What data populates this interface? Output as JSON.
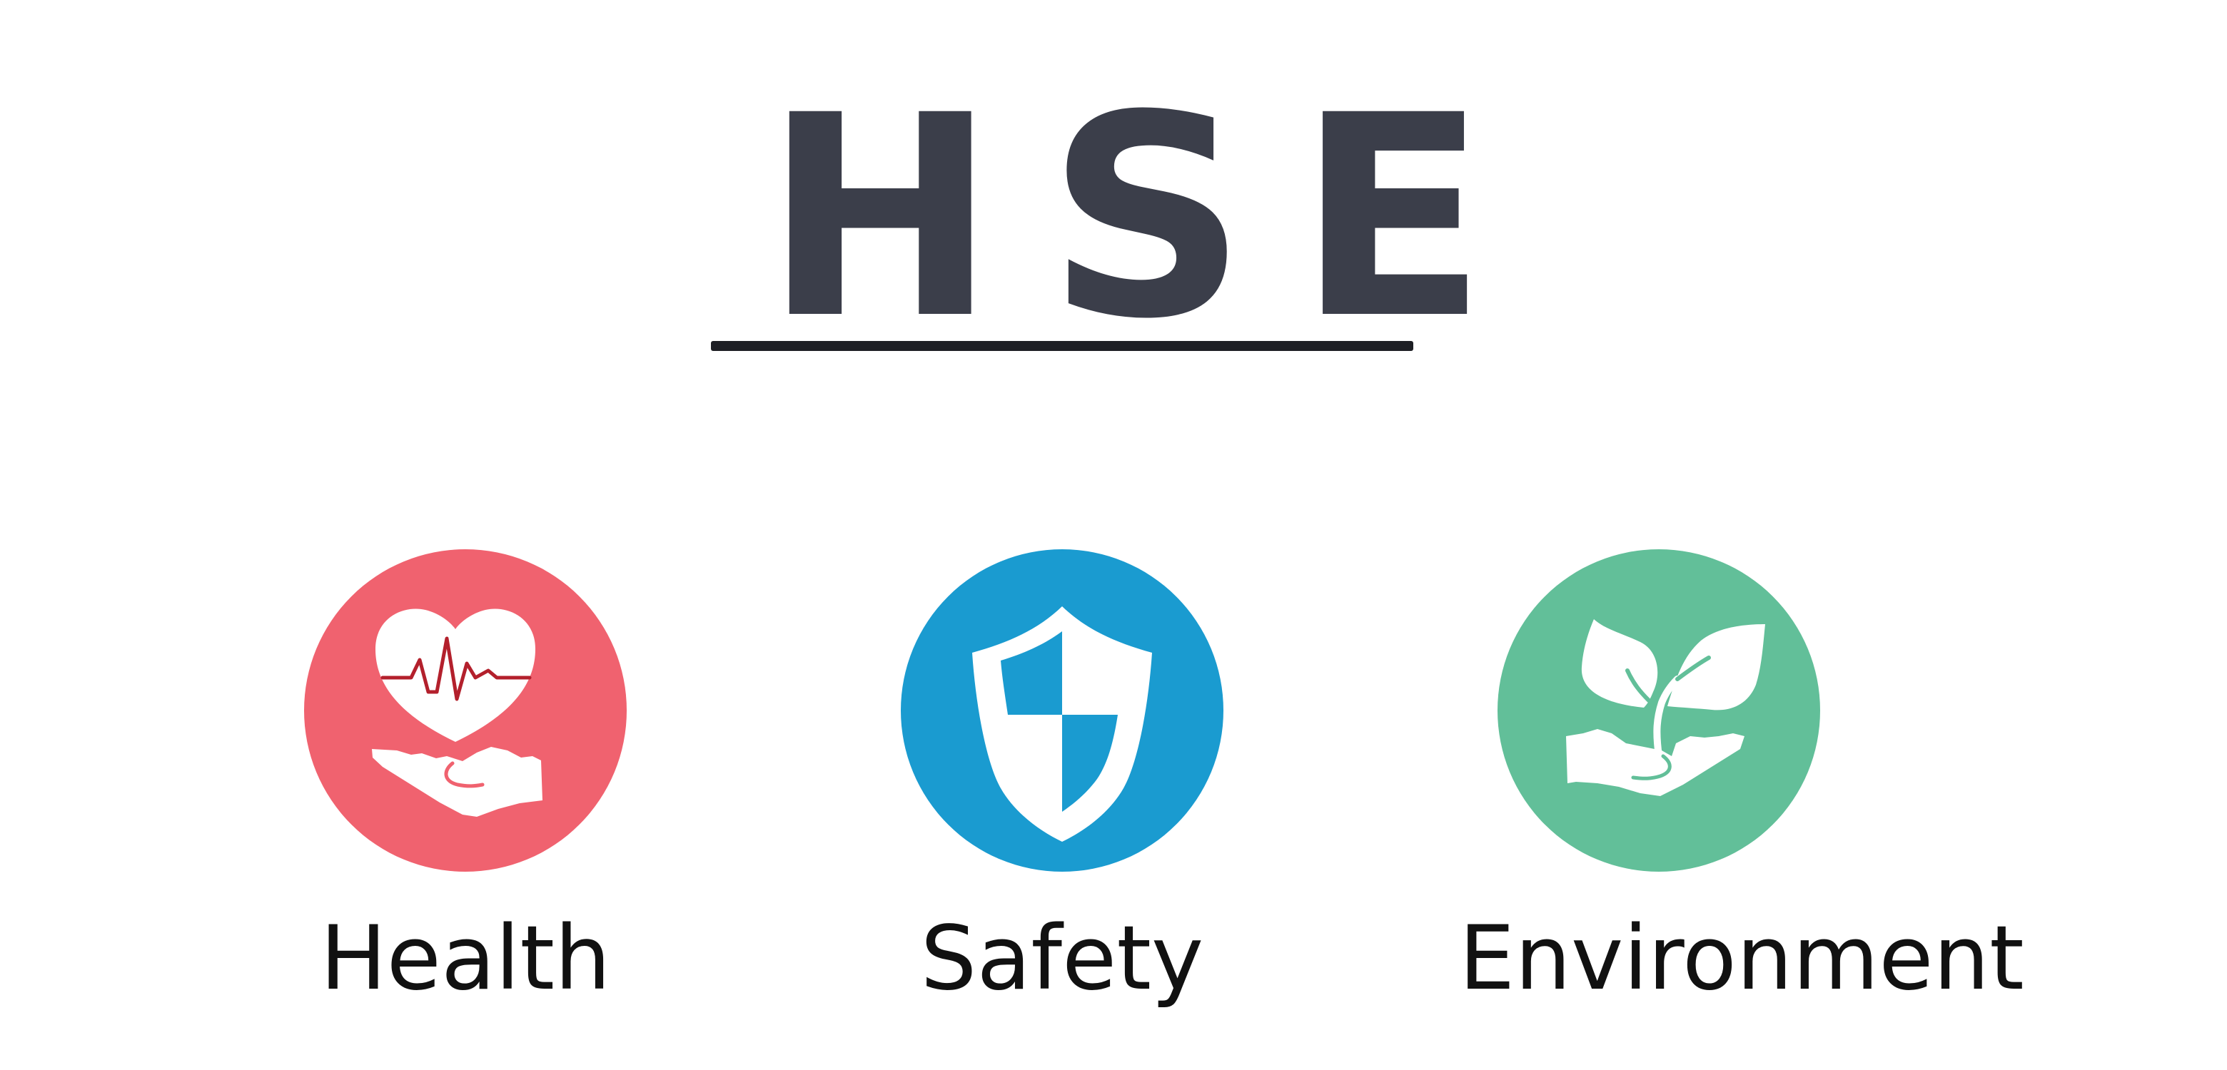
{
  "title": "HSE",
  "colors": {
    "title": "#3b3e4a",
    "underline": "#1d1e24",
    "health": "#f0626f",
    "safety": "#1a9bd0",
    "environment": "#62bf99",
    "icon": "#ffffff",
    "heartbeat": "#b3202c"
  },
  "pillars": [
    {
      "label": "Health",
      "icon": "heart-hand-icon"
    },
    {
      "label": "Safety",
      "icon": "shield-icon"
    },
    {
      "label": "Environment",
      "icon": "plant-hand-icon"
    }
  ]
}
